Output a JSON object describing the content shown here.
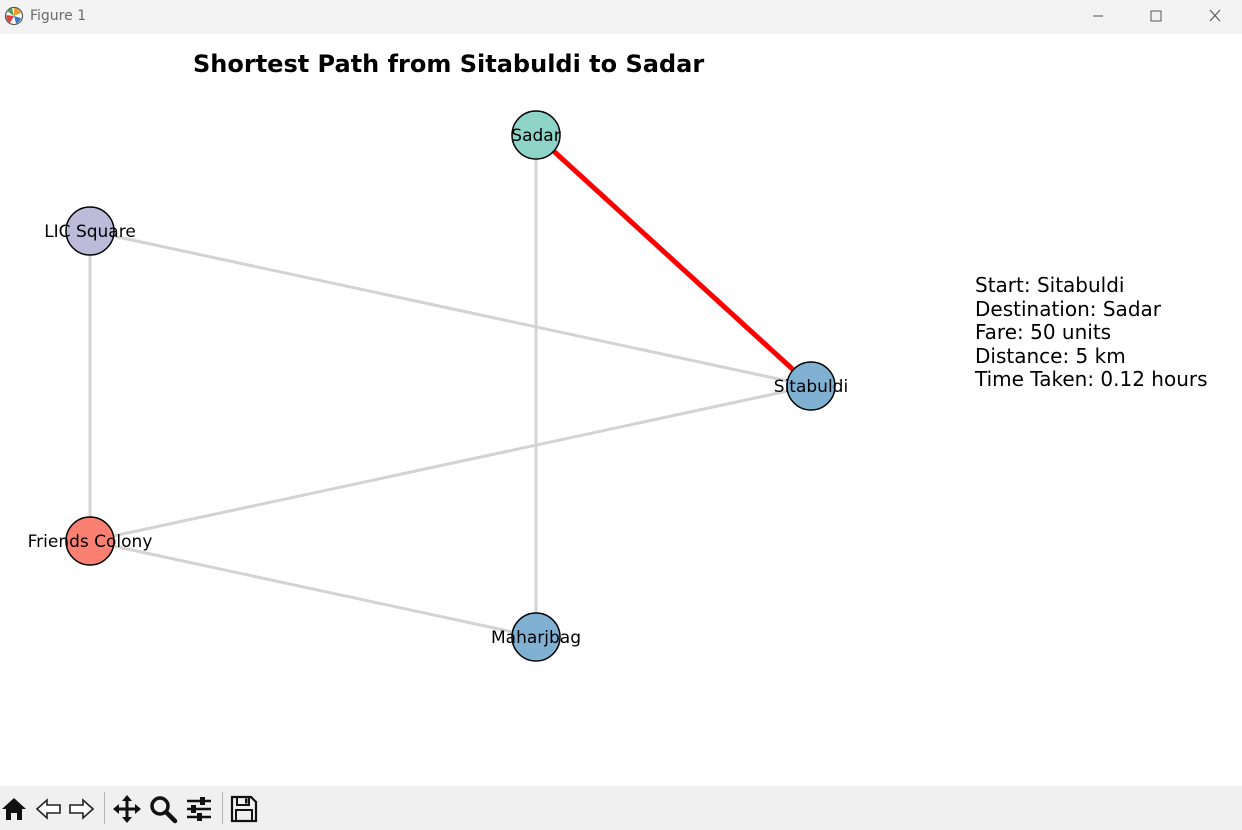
{
  "window": {
    "title": "Figure 1"
  },
  "plot": {
    "title": "Shortest Path from Sitabuldi to Sadar"
  },
  "chart_data": {
    "type": "network",
    "nodes": [
      {
        "id": "Sadar",
        "label": "Sadar",
        "color": "#8dd3c7"
      },
      {
        "id": "LIC Square",
        "label": "LIC Square",
        "color": "#bebada"
      },
      {
        "id": "Sitabuldi",
        "label": "Sitabuldi",
        "color": "#80b1d3"
      },
      {
        "id": "Friends Colony",
        "label": "Friends Colony",
        "color": "#fb8072"
      },
      {
        "id": "Maharjbag",
        "label": "Maharjbag",
        "color": "#80b1d3"
      }
    ],
    "edges": [
      {
        "source": "Sadar",
        "target": "Maharjbag",
        "highlighted": false
      },
      {
        "source": "LIC Square",
        "target": "Sitabuldi",
        "highlighted": false
      },
      {
        "source": "LIC Square",
        "target": "Friends Colony",
        "highlighted": false
      },
      {
        "source": "Friends Colony",
        "target": "Sitabuldi",
        "highlighted": false
      },
      {
        "source": "Friends Colony",
        "target": "Maharjbag",
        "highlighted": false
      },
      {
        "source": "Sadar",
        "target": "Sitabuldi",
        "highlighted": true
      }
    ],
    "edge_color": "#d3d3d3",
    "path_color": "#ff0000"
  },
  "info": {
    "start": "Start: Sitabuldi",
    "destination": "Destination: Sadar",
    "fare": "Fare: 50 units",
    "distance": "Distance: 5 km",
    "time": "Time Taken: 0.12 hours"
  },
  "toolbar": {
    "items": [
      "home-icon",
      "back-icon",
      "forward-icon",
      "pan-icon",
      "zoom-icon",
      "configure-icon",
      "save-icon"
    ]
  }
}
